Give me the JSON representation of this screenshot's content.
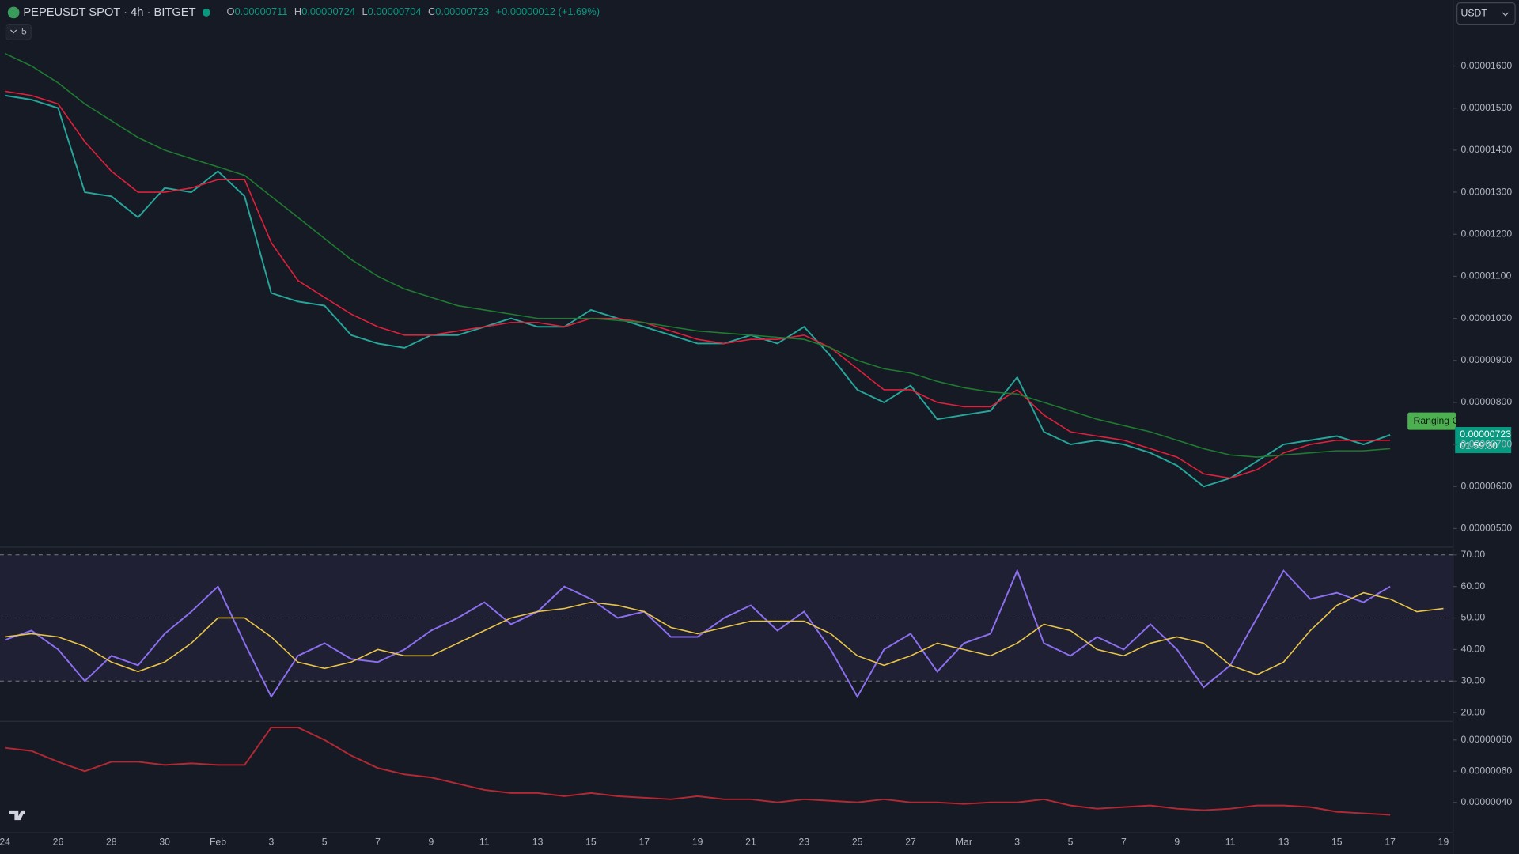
{
  "header": {
    "symbol": "PEPEUSDT SPOT · 4h · BITGET",
    "open_label": "O",
    "open": "0.00000711",
    "high_label": "H",
    "high": "0.00000724",
    "low_label": "L",
    "low": "0.00000704",
    "close_label": "C",
    "close": "0.00000723",
    "change": "+0.00000012 (+1.69%)",
    "indicator_count": "5",
    "currency": "USDT",
    "price_label": "0.00000723",
    "countdown": "01:59:30",
    "annotation": "Ranging C"
  },
  "chart_data": [
    {
      "type": "line",
      "categories": [
        "24",
        null,
        "26",
        null,
        "28",
        null,
        "30",
        null,
        "Feb",
        null,
        "3",
        null,
        "5",
        null,
        "7",
        null,
        "9",
        null,
        "11",
        null,
        "13",
        null,
        "15",
        null,
        "17",
        null,
        "19",
        null,
        "21",
        null,
        "23",
        null,
        "25",
        null,
        "27",
        null,
        "Mar",
        null,
        "3",
        null,
        "5",
        null,
        "7",
        null,
        "9",
        null,
        "11",
        null,
        "13",
        null,
        "15",
        null,
        "17",
        null,
        "19"
      ],
      "series": [
        {
          "color": "#26a69a",
          "values": [
            1.53e-05,
            1.52e-05,
            1.5e-05,
            1.3e-05,
            1.29e-05,
            1.24e-05,
            1.31e-05,
            1.3e-05,
            1.35e-05,
            1.29e-05,
            1.06e-05,
            1.04e-05,
            1.03e-05,
            9.6e-06,
            9.4e-06,
            9.3e-06,
            9.6e-06,
            9.6e-06,
            9.8e-06,
            1e-05,
            9.8e-06,
            9.8e-06,
            1.02e-05,
            1e-05,
            9.8e-06,
            9.6e-06,
            9.4e-06,
            9.4e-06,
            9.6e-06,
            9.4e-06,
            9.8e-06,
            9.1e-06,
            8.3e-06,
            8e-06,
            8.4e-06,
            7.6e-06,
            7.7e-06,
            7.8e-06,
            8.6e-06,
            7.3e-06,
            7e-06,
            7.1e-06,
            7e-06,
            6.8e-06,
            6.5e-06,
            6e-06,
            6.2e-06,
            6.6e-06,
            7e-06,
            7.1e-06,
            7.2e-06,
            7e-06,
            7.23e-06,
            null,
            null
          ]
        },
        {
          "color": "#e0203a",
          "values": [
            1.54e-05,
            1.53e-05,
            1.51e-05,
            1.42e-05,
            1.35e-05,
            1.3e-05,
            1.3e-05,
            1.31e-05,
            1.33e-05,
            1.33e-05,
            1.18e-05,
            1.09e-05,
            1.05e-05,
            1.01e-05,
            9.8e-06,
            9.6e-06,
            9.6e-06,
            9.7e-06,
            9.8e-06,
            9.9e-06,
            9.9e-06,
            9.8e-06,
            1e-05,
            1e-05,
            9.9e-06,
            9.7e-06,
            9.5e-06,
            9.4e-06,
            9.5e-06,
            9.5e-06,
            9.6e-06,
            9.3e-06,
            8.8e-06,
            8.3e-06,
            8.3e-06,
            8e-06,
            7.9e-06,
            7.9e-06,
            8.3e-06,
            7.7e-06,
            7.3e-06,
            7.2e-06,
            7.1e-06,
            6.9e-06,
            6.7e-06,
            6.3e-06,
            6.2e-06,
            6.4e-06,
            6.8e-06,
            7e-06,
            7.1e-06,
            7.1e-06,
            7.1e-06,
            null,
            null
          ]
        },
        {
          "color": "#1e7b30",
          "values": [
            1.63e-05,
            1.6e-05,
            1.56e-05,
            1.51e-05,
            1.47e-05,
            1.43e-05,
            1.4e-05,
            1.38e-05,
            1.36e-05,
            1.34e-05,
            1.29e-05,
            1.24e-05,
            1.19e-05,
            1.14e-05,
            1.1e-05,
            1.07e-05,
            1.05e-05,
            1.03e-05,
            1.02e-05,
            1.01e-05,
            1e-05,
            1e-05,
            1e-05,
            9.95e-06,
            9.9e-06,
            9.8e-06,
            9.7e-06,
            9.65e-06,
            9.6e-06,
            9.55e-06,
            9.5e-06,
            9.3e-06,
            9e-06,
            8.8e-06,
            8.7e-06,
            8.5e-06,
            8.35e-06,
            8.25e-06,
            8.2e-06,
            8e-06,
            7.8e-06,
            7.6e-06,
            7.45e-06,
            7.3e-06,
            7.1e-06,
            6.9e-06,
            6.75e-06,
            6.7e-06,
            6.75e-06,
            6.8e-06,
            6.85e-06,
            6.85e-06,
            6.9e-06,
            null,
            null
          ]
        }
      ],
      "ylim": [
        4.56e-06,
        1.688e-05
      ],
      "yticks": [
        {
          "value": 1.6e-05,
          "label": "0.00001600"
        },
        {
          "value": 1.5e-05,
          "label": "0.00001500"
        },
        {
          "value": 1.4e-05,
          "label": "0.00001400"
        },
        {
          "value": 1.3e-05,
          "label": "0.00001300"
        },
        {
          "value": 1.2e-05,
          "label": "0.00001200"
        },
        {
          "value": 1.1e-05,
          "label": "0.00001100"
        },
        {
          "value": 1e-05,
          "label": "0.00001000"
        },
        {
          "value": 9e-06,
          "label": "0.00000900"
        },
        {
          "value": 8e-06,
          "label": "0.00000800"
        },
        {
          "value": 7e-06,
          "label": "0.00000700"
        },
        {
          "value": 6e-06,
          "label": "0.00000600"
        },
        {
          "value": 5e-06,
          "label": "0.00000500"
        }
      ]
    },
    {
      "type": "line",
      "series": [
        {
          "color": "#8c6ff0",
          "values": [
            43,
            46,
            40,
            30,
            38,
            35,
            45,
            52,
            60,
            42,
            25,
            38,
            42,
            37,
            36,
            40,
            46,
            50,
            55,
            48,
            52,
            60,
            56,
            50,
            52,
            44,
            44,
            50,
            54,
            46,
            52,
            40,
            25,
            40,
            45,
            33,
            42,
            45,
            65,
            42,
            38,
            44,
            40,
            48,
            40,
            28,
            35,
            50,
            65,
            56,
            58,
            55,
            60,
            null,
            null
          ]
        },
        {
          "color": "#e8c547",
          "values": [
            44,
            45,
            44,
            41,
            36,
            33,
            36,
            42,
            50,
            50,
            44,
            36,
            34,
            36,
            40,
            38,
            38,
            42,
            46,
            50,
            52,
            53,
            55,
            54,
            52,
            47,
            45,
            47,
            49,
            49,
            49,
            45,
            38,
            35,
            38,
            42,
            40,
            38,
            42,
            48,
            46,
            40,
            38,
            42,
            44,
            42,
            35,
            32,
            36,
            46,
            54,
            58,
            56,
            52,
            53,
            null,
            null
          ]
        }
      ],
      "ylim": [
        17.2,
        72.5
      ],
      "yticks": [
        {
          "value": 70,
          "label": "70.00"
        },
        {
          "value": 60,
          "label": "60.00"
        },
        {
          "value": 50,
          "label": "50.00"
        },
        {
          "value": 40,
          "label": "40.00"
        },
        {
          "value": 30,
          "label": "30.00"
        },
        {
          "value": 20,
          "label": "20.00"
        }
      ],
      "levels": [
        30,
        50,
        70
      ]
    },
    {
      "type": "line",
      "series": [
        {
          "color": "#b22833",
          "values": [
            7.5e-07,
            7.3e-07,
            6.6e-07,
            6e-07,
            6.6e-07,
            6.6e-07,
            6.4e-07,
            6.5e-07,
            6.4e-07,
            6.4e-07,
            8.8e-07,
            8.8e-07,
            8e-07,
            7e-07,
            6.2e-07,
            5.8e-07,
            5.6e-07,
            5.2e-07,
            4.8e-07,
            4.6e-07,
            4.6e-07,
            4.4e-07,
            4.6e-07,
            4.4e-07,
            4.3e-07,
            4.2e-07,
            4.4e-07,
            4.2e-07,
            4.2e-07,
            4e-07,
            4.2e-07,
            4.1e-07,
            4e-07,
            4.2e-07,
            4e-07,
            4e-07,
            3.9e-07,
            4e-07,
            4e-07,
            4.2e-07,
            3.8e-07,
            3.6e-07,
            3.7e-07,
            3.8e-07,
            3.6e-07,
            3.5e-07,
            3.6e-07,
            3.8e-07,
            3.8e-07,
            3.7e-07,
            3.4e-07,
            3.3e-07,
            3.2e-07,
            null,
            null
          ]
        }
      ],
      "ylim": [
        2.06e-07,
        9.19e-07
      ],
      "yticks": [
        {
          "value": 8e-07,
          "label": "0.00000080"
        },
        {
          "value": 6e-07,
          "label": "0.00000060"
        },
        {
          "value": 4e-07,
          "label": "0.00000040"
        }
      ]
    }
  ]
}
